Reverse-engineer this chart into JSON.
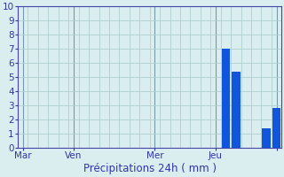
{
  "title": "Précipitations 24h ( mm )",
  "bar_data": [
    0,
    0,
    0,
    0,
    0,
    0,
    0,
    0,
    0,
    0,
    0,
    0,
    0,
    0,
    0,
    0,
    0,
    0,
    0,
    0,
    7.0,
    5.4,
    0,
    0,
    1.4,
    2.8
  ],
  "bar_color": "#1155dd",
  "xtick_positions": [
    0.5,
    5.5,
    14.0,
    19.5,
    24.5
  ],
  "xtick_labels": [
    "Mar",
    "Ven",
    "Mer",
    "Jeu",
    ""
  ],
  "ylim": [
    0,
    10
  ],
  "bg_color": "#daeef0",
  "grid_color": "#b0cece",
  "axis_color": "#4444aa",
  "tick_label_color": "#3333aa",
  "xlabel_color": "#3333aa",
  "xlabel_fontsize": 8.5,
  "tick_fontsize": 7.5
}
